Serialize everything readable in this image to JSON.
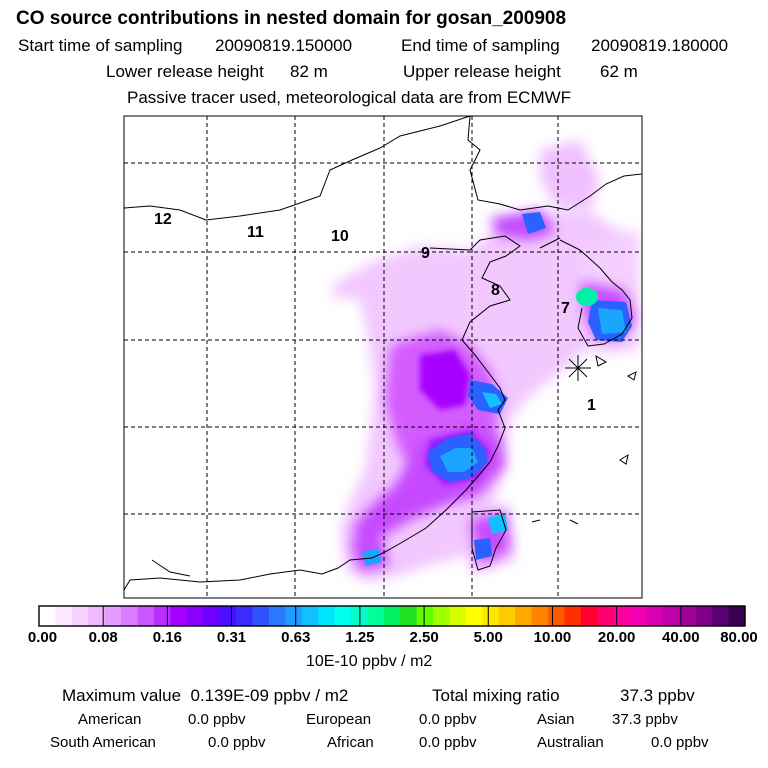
{
  "title": "CO  source contributions in nested domain for gosan_200908",
  "start_label": "Start time of sampling",
  "start_value": "20090819.150000",
  "end_label": "End time of sampling",
  "end_value": "20090819.180000",
  "lower_label": "Lower release height",
  "lower_value": "82 m",
  "upper_label": "Upper release height",
  "upper_value": "62 m",
  "tracer_note": "Passive tracer used, meteorological data are from ECMWF",
  "region_labels": {
    "r1": "1",
    "r7": "7",
    "r8": "8",
    "r9": "9",
    "r10": "10",
    "r11": "11",
    "r12": "12"
  },
  "colorbar": {
    "ticks": [
      "0.00",
      "0.08",
      "0.16",
      "0.31",
      "0.63",
      "1.25",
      "2.50",
      "5.00",
      "10.00",
      "20.00",
      "40.00",
      "80.00"
    ],
    "unit": "10E-10 ppbv / m2",
    "colors": [
      "#ffffff",
      "#fbe8ff",
      "#f6d2ff",
      "#f0b8ff",
      "#e59cff",
      "#d97cff",
      "#cb55ff",
      "#bb2dff",
      "#a500ff",
      "#8a00ff",
      "#6d00ff",
      "#4b10ff",
      "#3a2cff",
      "#2f52ff",
      "#2a78ff",
      "#1e9cff",
      "#10c0ff",
      "#00e5ff",
      "#00ffee",
      "#00ffc8",
      "#00ff98",
      "#00f060",
      "#20e020",
      "#60ff00",
      "#a0ff00",
      "#d8ff00",
      "#ffff00",
      "#ffe800",
      "#ffcc00",
      "#ffa800",
      "#ff8400",
      "#ff5a00",
      "#ff3000",
      "#ff0030",
      "#ff0070",
      "#ff00a0",
      "#f000b0",
      "#d800b0",
      "#c000a8",
      "#a0009a",
      "#80008a",
      "#5a0070",
      "#3a0050"
    ]
  },
  "stats": {
    "max_label": "Maximum value",
    "max_value": "0.139E-09 ppbv / m2",
    "total_label": "Total mixing ratio",
    "total_value": "37.3 ppbv",
    "sources": [
      {
        "name": "American",
        "value": "0.0 ppbv"
      },
      {
        "name": "European",
        "value": "0.0 ppbv"
      },
      {
        "name": "Asian",
        "value": "37.3 ppbv"
      },
      {
        "name": "South American",
        "value": "0.0 ppbv"
      },
      {
        "name": "African",
        "value": "0.0 ppbv"
      },
      {
        "name": "Australian",
        "value": "0.0 ppbv"
      }
    ]
  }
}
